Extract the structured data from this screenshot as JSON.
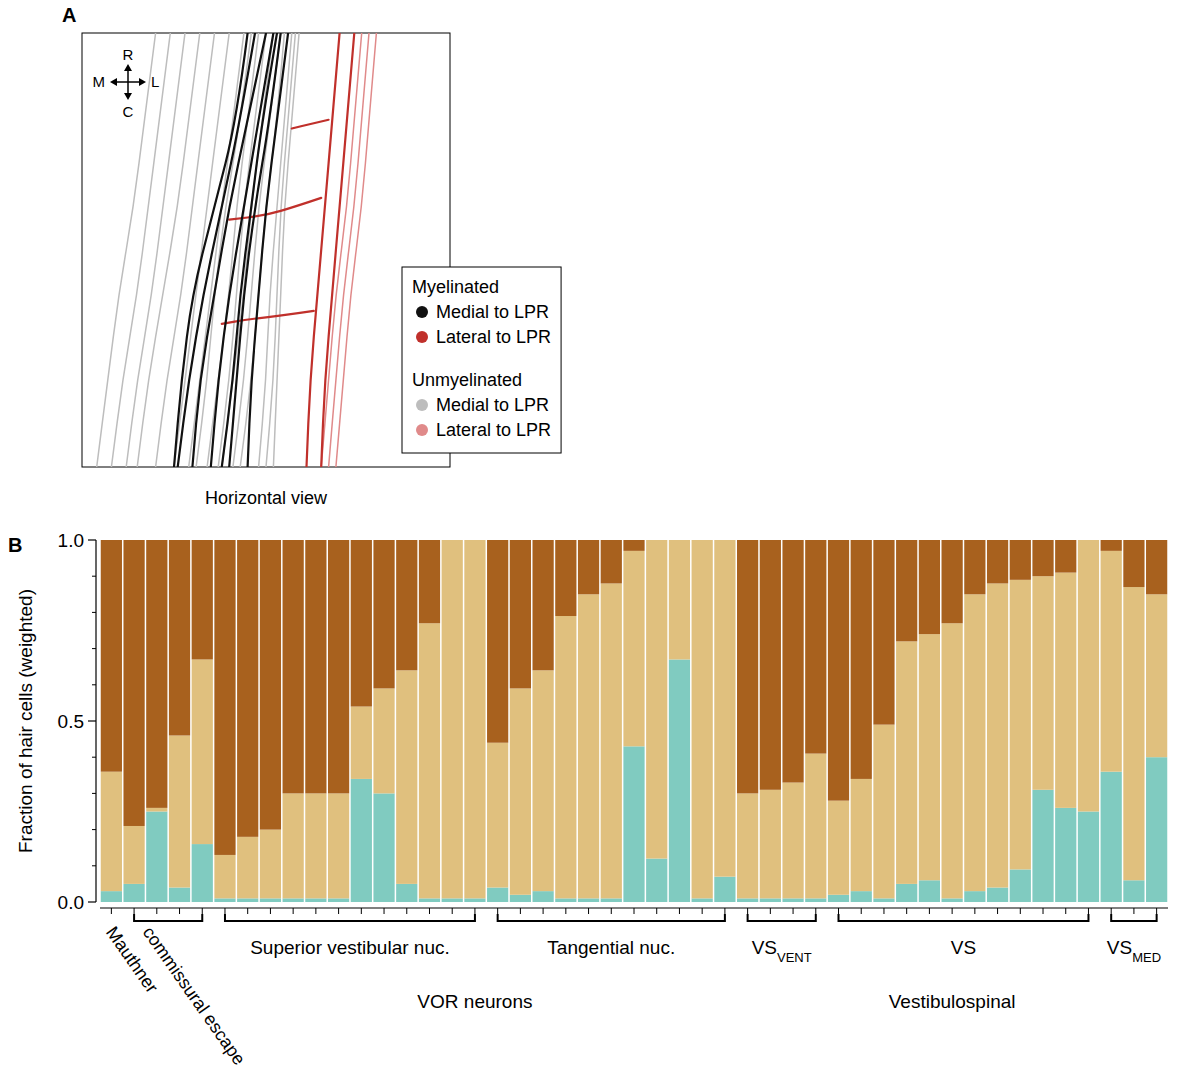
{
  "chart_data": [
    {
      "type": "line",
      "panel": "A",
      "xlabel": "Horizontal view",
      "tick_labels": false,
      "legend": "lower right",
      "xlim": [
        0,
        100
      ],
      "ylim": [
        0,
        100
      ],
      "compass": {
        "up": "R",
        "down": "C",
        "left": "M",
        "right": "L"
      },
      "series": [
        {
          "name": "Medial to LPR",
          "group": "Myelinated",
          "color": "#111111",
          "traces": [
            {
              "x": [
                50,
                45,
                40,
                36,
                32,
                30
              ],
              "y": [
                100,
                80,
                60,
                40,
                20,
                0
              ]
            },
            {
              "x": [
                52,
                48,
                44,
                40,
                37,
                35
              ],
              "y": [
                100,
                80,
                60,
                40,
                20,
                0
              ]
            },
            {
              "x": [
                54,
                51,
                47,
                44,
                42,
                40
              ],
              "y": [
                100,
                80,
                60,
                40,
                20,
                0
              ]
            },
            {
              "x": [
                56,
                53,
                50,
                48,
                46,
                45
              ],
              "y": [
                100,
                80,
                60,
                40,
                20,
                0
              ]
            },
            {
              "x": [
                47,
                43,
                38,
                33,
                29,
                26
              ],
              "y": [
                100,
                80,
                60,
                40,
                20,
                0
              ]
            },
            {
              "x": [
                53,
                49,
                46,
                43,
                41,
                38
              ],
              "y": [
                100,
                80,
                60,
                40,
                20,
                0
              ]
            },
            {
              "x": [
                45,
                42,
                36,
                30,
                27,
                25
              ],
              "y": [
                100,
                80,
                60,
                40,
                20,
                0
              ]
            }
          ]
        },
        {
          "name": "Lateral to LPR",
          "group": "Myelinated",
          "color": "#c0302b",
          "traces": [
            {
              "x": [
                70,
                68,
                66,
                64,
                62,
                61
              ],
              "y": [
                100,
                80,
                60,
                40,
                20,
                0
              ]
            },
            {
              "x": [
                74,
                72,
                70,
                68,
                66,
                65
              ],
              "y": [
                100,
                80,
                60,
                40,
                20,
                0
              ]
            },
            {
              "x": [
                67,
                62,
                57
              ],
              "y": [
                80,
                79,
                78
              ]
            },
            {
              "x": [
                65,
                58,
                50,
                40
              ],
              "y": [
                62,
                60,
                58,
                57
              ]
            },
            {
              "x": [
                63,
                55,
                45,
                38
              ],
              "y": [
                36,
                35,
                34,
                33
              ]
            }
          ]
        },
        {
          "name": "Medial to LPR",
          "group": "Unmyelinated",
          "color": "#bdbdbd",
          "traces": [
            {
              "x": [
                20,
                17,
                14,
                10,
                7,
                4
              ],
              "y": [
                100,
                80,
                60,
                40,
                20,
                0
              ]
            },
            {
              "x": [
                24,
                21,
                18,
                15,
                11,
                8
              ],
              "y": [
                100,
                80,
                60,
                40,
                20,
                0
              ]
            },
            {
              "x": [
                28,
                25,
                22,
                19,
                15,
                12
              ],
              "y": [
                100,
                80,
                60,
                40,
                20,
                0
              ]
            },
            {
              "x": [
                32,
                29,
                26,
                22,
                18,
                15
              ],
              "y": [
                100,
                80,
                60,
                40,
                20,
                0
              ]
            },
            {
              "x": [
                36,
                33,
                30,
                27,
                23,
                20
              ],
              "y": [
                100,
                80,
                60,
                40,
                20,
                0
              ]
            },
            {
              "x": [
                40,
                37,
                34,
                31,
                28,
                25
              ],
              "y": [
                100,
                80,
                60,
                40,
                20,
                0
              ]
            },
            {
              "x": [
                44,
                41,
                38,
                35,
                32,
                29
              ],
              "y": [
                100,
                80,
                60,
                40,
                20,
                0
              ]
            },
            {
              "x": [
                48,
                45,
                42,
                40,
                37,
                34
              ],
              "y": [
                100,
                80,
                60,
                40,
                20,
                0
              ]
            },
            {
              "x": [
                52,
                49,
                46,
                44,
                41,
                38
              ],
              "y": [
                100,
                80,
                60,
                40,
                20,
                0
              ]
            },
            {
              "x": [
                55,
                53,
                50,
                48,
                46,
                43
              ],
              "y": [
                100,
                80,
                60,
                40,
                20,
                0
              ]
            },
            {
              "x": [
                57,
                55,
                53,
                51,
                50,
                48
              ],
              "y": [
                100,
                80,
                60,
                40,
                20,
                0
              ]
            },
            {
              "x": [
                59,
                57,
                55,
                54,
                53,
                52
              ],
              "y": [
                100,
                80,
                60,
                40,
                20,
                0
              ]
            },
            {
              "x": [
                46,
                43,
                39,
                36,
                34,
                31
              ],
              "y": [
                100,
                80,
                60,
                40,
                20,
                0
              ]
            },
            {
              "x": [
                50,
                47,
                44,
                42,
                40,
                37
              ],
              "y": [
                100,
                80,
                60,
                40,
                20,
                0
              ]
            },
            {
              "x": [
                54,
                51,
                48,
                46,
                44,
                41
              ],
              "y": [
                100,
                80,
                60,
                40,
                20,
                0
              ]
            },
            {
              "x": [
                58,
                56,
                54,
                53,
                52,
                50
              ],
              "y": [
                100,
                80,
                60,
                40,
                20,
                0
              ]
            }
          ]
        },
        {
          "name": "Lateral to LPR",
          "group": "Unmyelinated",
          "color": "#e08a8a",
          "traces": [
            {
              "x": [
                78,
                76,
                74,
                71,
                69,
                67
              ],
              "y": [
                100,
                80,
                60,
                40,
                20,
                0
              ]
            },
            {
              "x": [
                80,
                78,
                76,
                73,
                71,
                69
              ],
              "y": [
                100,
                80,
                60,
                40,
                20,
                0
              ]
            },
            {
              "x": [
                76,
                74,
                72,
                69,
                67,
                65
              ],
              "y": [
                100,
                80,
                60,
                40,
                20,
                0
              ]
            }
          ]
        }
      ]
    },
    {
      "type": "bar",
      "panel": "B",
      "stacked": true,
      "tick_labels": "y",
      "ylabel": "Fraction of hair cells (weighted)",
      "ylim": [
        0,
        1
      ],
      "yticks": [
        {
          "value": 0,
          "label": "0.0"
        },
        {
          "value": 0.5,
          "label": "0.5"
        },
        {
          "value": 1,
          "label": "1.0"
        }
      ],
      "minor_yticks": [
        0.1,
        0.2,
        0.3,
        0.4,
        0.6,
        0.7,
        0.8,
        0.9
      ],
      "categories": [
        null,
        null,
        null,
        null,
        null,
        null,
        null,
        null,
        null,
        null,
        null,
        null,
        null,
        null,
        null,
        null,
        null,
        null,
        null,
        null,
        null,
        null,
        null,
        null,
        null,
        null,
        null,
        null,
        null,
        null,
        null,
        null,
        null,
        null,
        null,
        null,
        null,
        null,
        null,
        null,
        null,
        null,
        null,
        null,
        null,
        null,
        null
      ],
      "series": [
        {
          "color": "#80cbc0",
          "values": [
            0.03,
            0.05,
            0.25,
            0.04,
            0.16,
            0.01,
            0.01,
            0.01,
            0.01,
            0.01,
            0.01,
            0.34,
            0.3,
            0.05,
            0.01,
            0.01,
            0.01,
            0.04,
            0.02,
            0.03,
            0.01,
            0.01,
            0.01,
            0.43,
            0.12,
            0.67,
            0.01,
            0.07,
            0.01,
            0.01,
            0.01,
            0.01,
            0.02,
            0.03,
            0.01,
            0.05,
            0.06,
            0.01,
            0.03,
            0.04,
            0.09,
            0.31,
            0.26,
            0.25,
            0.36,
            0.06,
            0.4
          ]
        },
        {
          "color": "#e0c07e",
          "values": [
            0.33,
            0.16,
            0.01,
            0.42,
            0.51,
            0.12,
            0.17,
            0.19,
            0.29,
            0.29,
            0.29,
            0.2,
            0.29,
            0.59,
            0.76,
            0.99,
            0.99,
            0.4,
            0.57,
            0.61,
            0.78,
            0.84,
            0.87,
            0.54,
            0.88,
            0.33,
            0.99,
            0.93,
            0.29,
            0.3,
            0.32,
            0.4,
            0.26,
            0.31,
            0.48,
            0.67,
            0.68,
            0.76,
            0.82,
            0.84,
            0.8,
            0.59,
            0.65,
            0.75,
            0.61,
            0.81,
            0.45
          ]
        },
        {
          "color": "#a8611e",
          "values": [
            0.64,
            0.79,
            0.74,
            0.54,
            0.33,
            0.87,
            0.82,
            0.8,
            0.7,
            0.7,
            0.7,
            0.46,
            0.41,
            0.36,
            0.23,
            0,
            0,
            0.56,
            0.41,
            0.36,
            0.21,
            0.15,
            0.12,
            0.03,
            0,
            0,
            0,
            0,
            0.7,
            0.69,
            0.67,
            0.59,
            0.72,
            0.66,
            0.51,
            0.28,
            0.26,
            0.23,
            0.15,
            0.12,
            0.11,
            0.1,
            0.09,
            0,
            0.03,
            0.13,
            0.15
          ]
        }
      ],
      "groups": [
        {
          "label": "Mauthner",
          "start": 0,
          "end": 0
        },
        {
          "label": "commissural escape",
          "start": 1,
          "end": 4
        },
        {
          "label": "Superior vestibular nuc.",
          "start": 5,
          "end": 16
        },
        {
          "label": "Tangential nuc.",
          "start": 17,
          "end": 27
        },
        {
          "label": "VS",
          "subscript": "VENT",
          "start": 28,
          "end": 31
        },
        {
          "label": "VS",
          "start": 32,
          "end": 43
        },
        {
          "label": "VS",
          "subscript": "MED",
          "start": 44,
          "end": 46
        }
      ],
      "supergroups": [
        {
          "label": "VOR neurons",
          "start": 5,
          "end": 27
        },
        {
          "label": "Vestibulospinal",
          "start": 28,
          "end": 46
        }
      ]
    }
  ]
}
